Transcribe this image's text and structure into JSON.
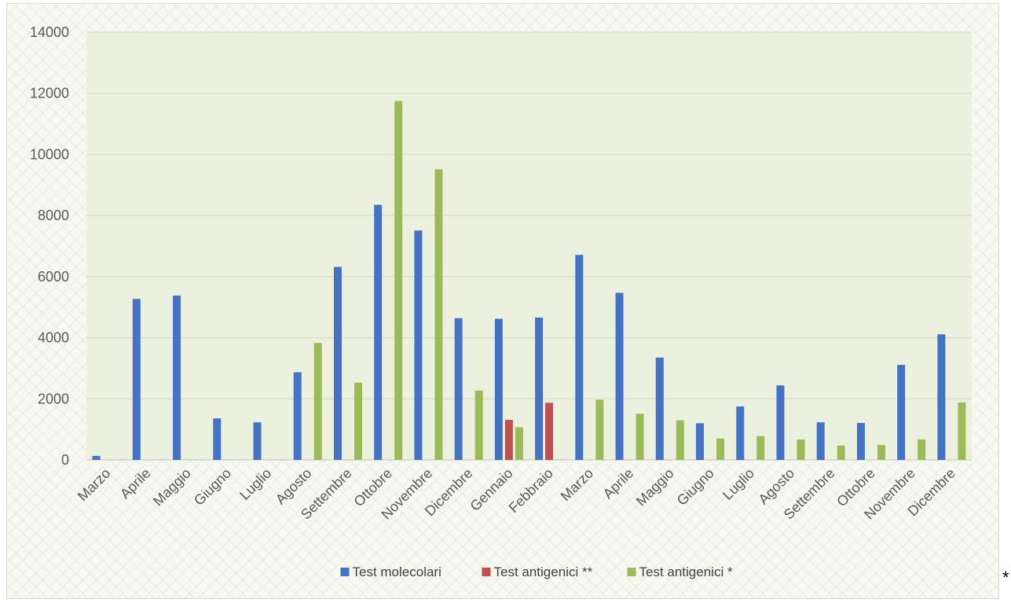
{
  "chart_data": {
    "type": "bar",
    "title": "",
    "xlabel": "",
    "ylabel": "",
    "ylim": [
      0,
      14000
    ],
    "yticks": [
      0,
      2000,
      4000,
      6000,
      8000,
      10000,
      12000,
      14000
    ],
    "grid": true,
    "legend_position": "bottom",
    "categories": [
      "Marzo",
      "Aprile",
      "Maggio",
      "Giugno",
      "Luglio",
      "Agosto",
      "Settembre",
      "Ottobre",
      "Novembre",
      "Dicembre",
      "Gennaio",
      "Febbraio",
      "Marzo",
      "Aprile",
      "Maggio",
      "Giugno",
      "Luglio",
      "Agosto",
      "Settembre",
      "Ottobre",
      "Novembre",
      "Dicembre"
    ],
    "series": [
      {
        "name": "Test molecolari",
        "color": "#4472c4",
        "values": [
          130,
          5270,
          5380,
          1360,
          1230,
          2870,
          6320,
          8350,
          7510,
          4640,
          4620,
          4660,
          6710,
          5470,
          3350,
          1200,
          1750,
          2440,
          1230,
          1210,
          3110,
          4110
        ]
      },
      {
        "name": "Test antigenici **",
        "color": "#c0504d",
        "values": [
          null,
          null,
          null,
          null,
          null,
          null,
          null,
          null,
          null,
          null,
          1310,
          1870,
          null,
          null,
          null,
          null,
          null,
          null,
          null,
          null,
          null,
          null
        ]
      },
      {
        "name": "Test antigenici *",
        "color": "#9bbb59",
        "values": [
          null,
          null,
          null,
          null,
          null,
          3830,
          2530,
          11750,
          9510,
          2270,
          1070,
          null,
          1970,
          1510,
          1300,
          700,
          780,
          670,
          470,
          490,
          670,
          1880
        ]
      }
    ]
  },
  "footnote_mark": "*"
}
